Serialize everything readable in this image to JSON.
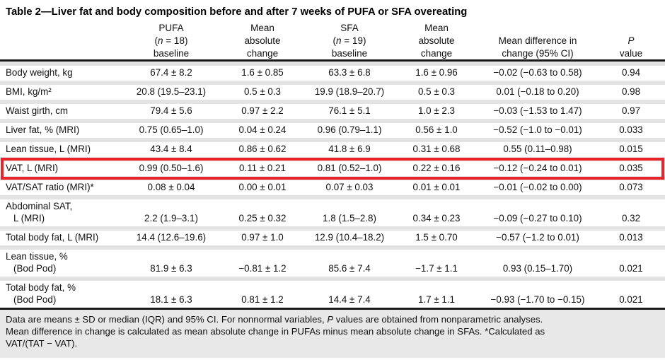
{
  "title": "Table 2—Liver fat and body composition before and after 7 weeks of PUFA or SFA overeating",
  "header": {
    "pufa": {
      "line1": "PUFA",
      "n_open": "(",
      "n_italic": "n",
      "n_close": " = 18)",
      "line3": "baseline"
    },
    "pufa_change": {
      "line1": "Mean",
      "line2": "absolute",
      "line3": "change"
    },
    "sfa": {
      "line1": "SFA",
      "n_open": "(",
      "n_italic": "n",
      "n_close": " = 19)",
      "line3": "baseline"
    },
    "sfa_change": {
      "line1": "Mean",
      "line2": "absolute",
      "line3": "change"
    },
    "diff": {
      "line1": "Mean difference in",
      "line2": "change (95% CI)"
    },
    "p": {
      "line1": "P",
      "line2": "value"
    }
  },
  "rows": [
    {
      "label": "Body weight, kg",
      "pufa_baseline": "67.4 ± 8.2",
      "pufa_change": "1.6 ± 0.85",
      "sfa_baseline": "63.3 ± 6.8",
      "sfa_change": "1.6 ± 0.96",
      "diff": "−0.02 (−0.63 to 0.58)",
      "p": "0.94",
      "highlight": false
    },
    {
      "label": "BMI, kg/m²",
      "pufa_baseline": "20.8 (19.5–23.1)",
      "pufa_change": "0.5 ± 0.3",
      "sfa_baseline": "19.9 (18.9–20.7)",
      "sfa_change": "0.5 ± 0.3",
      "diff": "0.01 (−0.18 to 0.20)",
      "p": "0.98",
      "highlight": false
    },
    {
      "label": "Waist girth, cm",
      "pufa_baseline": "79.4 ± 5.6",
      "pufa_change": "0.97 ± 2.2",
      "sfa_baseline": "76.1 ± 5.1",
      "sfa_change": "1.0 ± 2.3",
      "diff": "−0.03 (−1.53 to 1.47)",
      "p": "0.97",
      "highlight": false
    },
    {
      "label": "Liver fat, % (MRI)",
      "pufa_baseline": "0.75 (0.65–1.0)",
      "pufa_change": "0.04 ± 0.24",
      "sfa_baseline": "0.96 (0.79–1.1)",
      "sfa_change": "0.56 ± 1.0",
      "diff": "−0.52 (−1.0 to −0.01)",
      "p": "0.033",
      "highlight": false
    },
    {
      "label": "Lean tissue, L (MRI)",
      "pufa_baseline": "43.4 ± 8.4",
      "pufa_change": "0.86 ± 0.62",
      "sfa_baseline": "41.8 ± 6.9",
      "sfa_change": "0.31 ± 0.68",
      "diff": "0.55 (0.11–0.98)",
      "p": "0.015",
      "highlight": false
    },
    {
      "label": "VAT, L (MRI)",
      "pufa_baseline": "0.99 (0.50–1.6)",
      "pufa_change": "0.11 ± 0.21",
      "sfa_baseline": "0.81 (0.52–1.0)",
      "sfa_change": "0.22 ± 0.16",
      "diff": "−0.12 (−0.24 to 0.01)",
      "p": "0.035",
      "highlight": true
    },
    {
      "label": "VAT/SAT ratio (MRI)*",
      "pufa_baseline": "0.08 ± 0.04",
      "pufa_change": "0.00 ± 0.01",
      "sfa_baseline": "0.07 ± 0.03",
      "sfa_change": "0.01 ± 0.01",
      "diff": "−0.01 (−0.02 to 0.00)",
      "p": "0.073",
      "highlight": false
    },
    {
      "label": "Abdominal SAT,",
      "label2": "L (MRI)",
      "pufa_baseline": "2.2 (1.9–3.1)",
      "pufa_change": "0.25 ± 0.32",
      "sfa_baseline": "1.8 (1.5–2.8)",
      "sfa_change": "0.34 ± 0.23",
      "diff": "−0.09 (−0.27 to 0.10)",
      "p": "0.32",
      "highlight": false
    },
    {
      "label": "Total body fat, L (MRI)",
      "pufa_baseline": "14.4 (12.6–19.6)",
      "pufa_change": "0.97 ± 1.0",
      "sfa_baseline": "12.9 (10.4–18.2)",
      "sfa_change": "1.5 ± 0.70",
      "diff": "−0.57 (−1.2 to 0.01)",
      "p": "0.013",
      "highlight": false
    },
    {
      "label": "Lean tissue, %",
      "label2": "(Bod Pod)",
      "pufa_baseline": "81.9 ± 6.3",
      "pufa_change": "−0.81 ± 1.2",
      "sfa_baseline": "85.6 ± 7.4",
      "sfa_change": "−1.7 ± 1.1",
      "diff": "0.93 (0.15–1.70)",
      "p": "0.021",
      "highlight": false
    },
    {
      "label": "Total body fat, %",
      "label2": "(Bod Pod)",
      "pufa_baseline": "18.1 ± 6.3",
      "pufa_change": "0.81 ± 1.2",
      "sfa_baseline": "14.4 ± 7.4",
      "sfa_change": "1.7 ± 1.1",
      "diff": "−0.93 (−1.70 to −0.15)",
      "p": "0.021",
      "highlight": false
    }
  ],
  "footnote": {
    "line1_seg1": "Data are means ± SD or median (IQR) and 95% CI. For nonnormal variables, ",
    "line1_seg2": "P",
    "line1_seg3": " values are obtained from nonparametric analyses.",
    "line2": "Mean difference in change is calculated as mean absolute change in PUFAs minus mean absolute change in SFAs. *Calculated as",
    "line3": "VAT/(TAT − VAT)."
  },
  "colors": {
    "highlight_border": "#e8232a",
    "row_separator": "#e3e3e4",
    "footnote_background": "#e8e8e8",
    "rule": "#1a1a1a"
  }
}
